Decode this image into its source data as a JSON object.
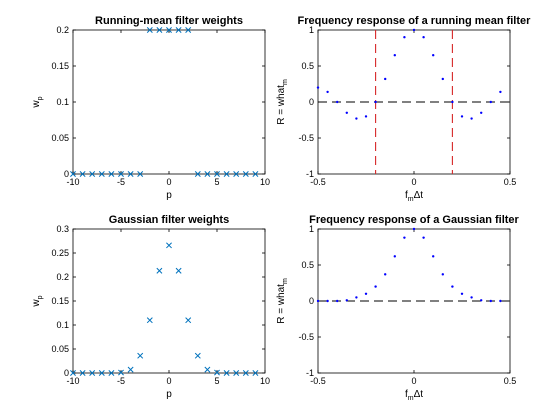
{
  "chart_data": [
    {
      "type": "scatter",
      "title": "Running-mean filter weights",
      "xlabel": "p",
      "ylabel": "w",
      "ylabel_sub": "p",
      "xlim": [
        -10,
        10
      ],
      "ylim": [
        0,
        0.2
      ],
      "xticks": [
        "-10",
        "-5",
        "0",
        "5",
        "10"
      ],
      "yticks": [
        "0",
        "0.05",
        "0.1",
        "0.15",
        "0.2"
      ],
      "marker": "x",
      "color": "#0072bd",
      "x": [
        -10,
        -9,
        -8,
        -7,
        -6,
        -5,
        -4,
        -3,
        -2,
        -1,
        0,
        1,
        2,
        3,
        4,
        5,
        6,
        7,
        8,
        9
      ],
      "y": [
        0,
        0,
        0,
        0,
        0,
        0,
        0,
        0,
        0.2,
        0.2,
        0.2,
        0.2,
        0.2,
        0,
        0,
        0,
        0,
        0,
        0,
        0
      ]
    },
    {
      "type": "scatter",
      "title": "Frequency response of a running mean filter",
      "xlabel": "f",
      "xlabel_sub": "m",
      "xlabel_tail": "Δt",
      "ylabel": "R = what",
      "ylabel_sub": "m",
      "xlim": [
        -0.5,
        0.5
      ],
      "ylim": [
        -1,
        1
      ],
      "xticks": [
        "-0.5",
        "0",
        "0.5"
      ],
      "yticks": [
        "-1",
        "-0.5",
        "0",
        "0.5",
        "1"
      ],
      "marker": "dot",
      "color": "#0000ff",
      "x": [
        -0.5,
        -0.45,
        -0.4,
        -0.35,
        -0.3,
        -0.25,
        -0.2,
        -0.15,
        -0.1,
        -0.05,
        0,
        0.05,
        0.1,
        0.15,
        0.2,
        0.25,
        0.3,
        0.35,
        0.4,
        0.45
      ],
      "y": [
        0.2,
        0.14,
        0,
        -0.15,
        -0.23,
        -0.2,
        0,
        0.32,
        0.65,
        0.9,
        1,
        0.9,
        0.65,
        0.32,
        0,
        -0.2,
        -0.23,
        -0.15,
        0,
        0.14
      ],
      "hlines": [
        {
          "y": 0,
          "style": "dash",
          "color": "#000000"
        }
      ],
      "vlines": [
        {
          "x": -0.2,
          "style": "dash",
          "color": "#d62728"
        },
        {
          "x": 0.2,
          "style": "dash",
          "color": "#d62728"
        }
      ]
    },
    {
      "type": "scatter",
      "title": "Gaussian filter weights",
      "xlabel": "p",
      "ylabel": "w",
      "ylabel_sub": "p",
      "xlim": [
        -10,
        10
      ],
      "ylim": [
        0,
        0.3
      ],
      "xticks": [
        "-10",
        "-5",
        "0",
        "5",
        "10"
      ],
      "yticks": [
        "0",
        "0.05",
        "0.1",
        "0.15",
        "0.2",
        "0.25",
        "0.3"
      ],
      "marker": "x",
      "color": "#0072bd",
      "x": [
        -10,
        -9,
        -8,
        -7,
        -6,
        -5,
        -4,
        -3,
        -2,
        -1,
        0,
        1,
        2,
        3,
        4,
        5,
        6,
        7,
        8,
        9
      ],
      "y": [
        0,
        0,
        0,
        0,
        0,
        0.001,
        0.007,
        0.036,
        0.11,
        0.213,
        0.266,
        0.213,
        0.11,
        0.036,
        0.007,
        0.001,
        0,
        0,
        0,
        0
      ]
    },
    {
      "type": "scatter",
      "title": "Frequency response of a Gaussian filter",
      "xlabel": "f",
      "xlabel_sub": "m",
      "xlabel_tail": "Δt",
      "ylabel": "R = what",
      "ylabel_sub": "m",
      "xlim": [
        -0.5,
        0.5
      ],
      "ylim": [
        -1,
        1
      ],
      "xticks": [
        "-0.5",
        "0",
        "0.5"
      ],
      "yticks": [
        "-1",
        "-0.5",
        "0",
        "0.5",
        "1"
      ],
      "marker": "dot",
      "color": "#0000ff",
      "x": [
        -0.5,
        -0.45,
        -0.4,
        -0.35,
        -0.3,
        -0.25,
        -0.2,
        -0.15,
        -0.1,
        -0.05,
        0,
        0.05,
        0.1,
        0.15,
        0.2,
        0.25,
        0.3,
        0.35,
        0.4,
        0.45
      ],
      "y": [
        0,
        0,
        0,
        0.01,
        0.05,
        0.1,
        0.2,
        0.37,
        0.62,
        0.88,
        1,
        0.88,
        0.62,
        0.37,
        0.2,
        0.1,
        0.05,
        0.01,
        0,
        0
      ],
      "hlines": [
        {
          "y": 0,
          "style": "dash",
          "color": "#000000"
        }
      ]
    }
  ]
}
